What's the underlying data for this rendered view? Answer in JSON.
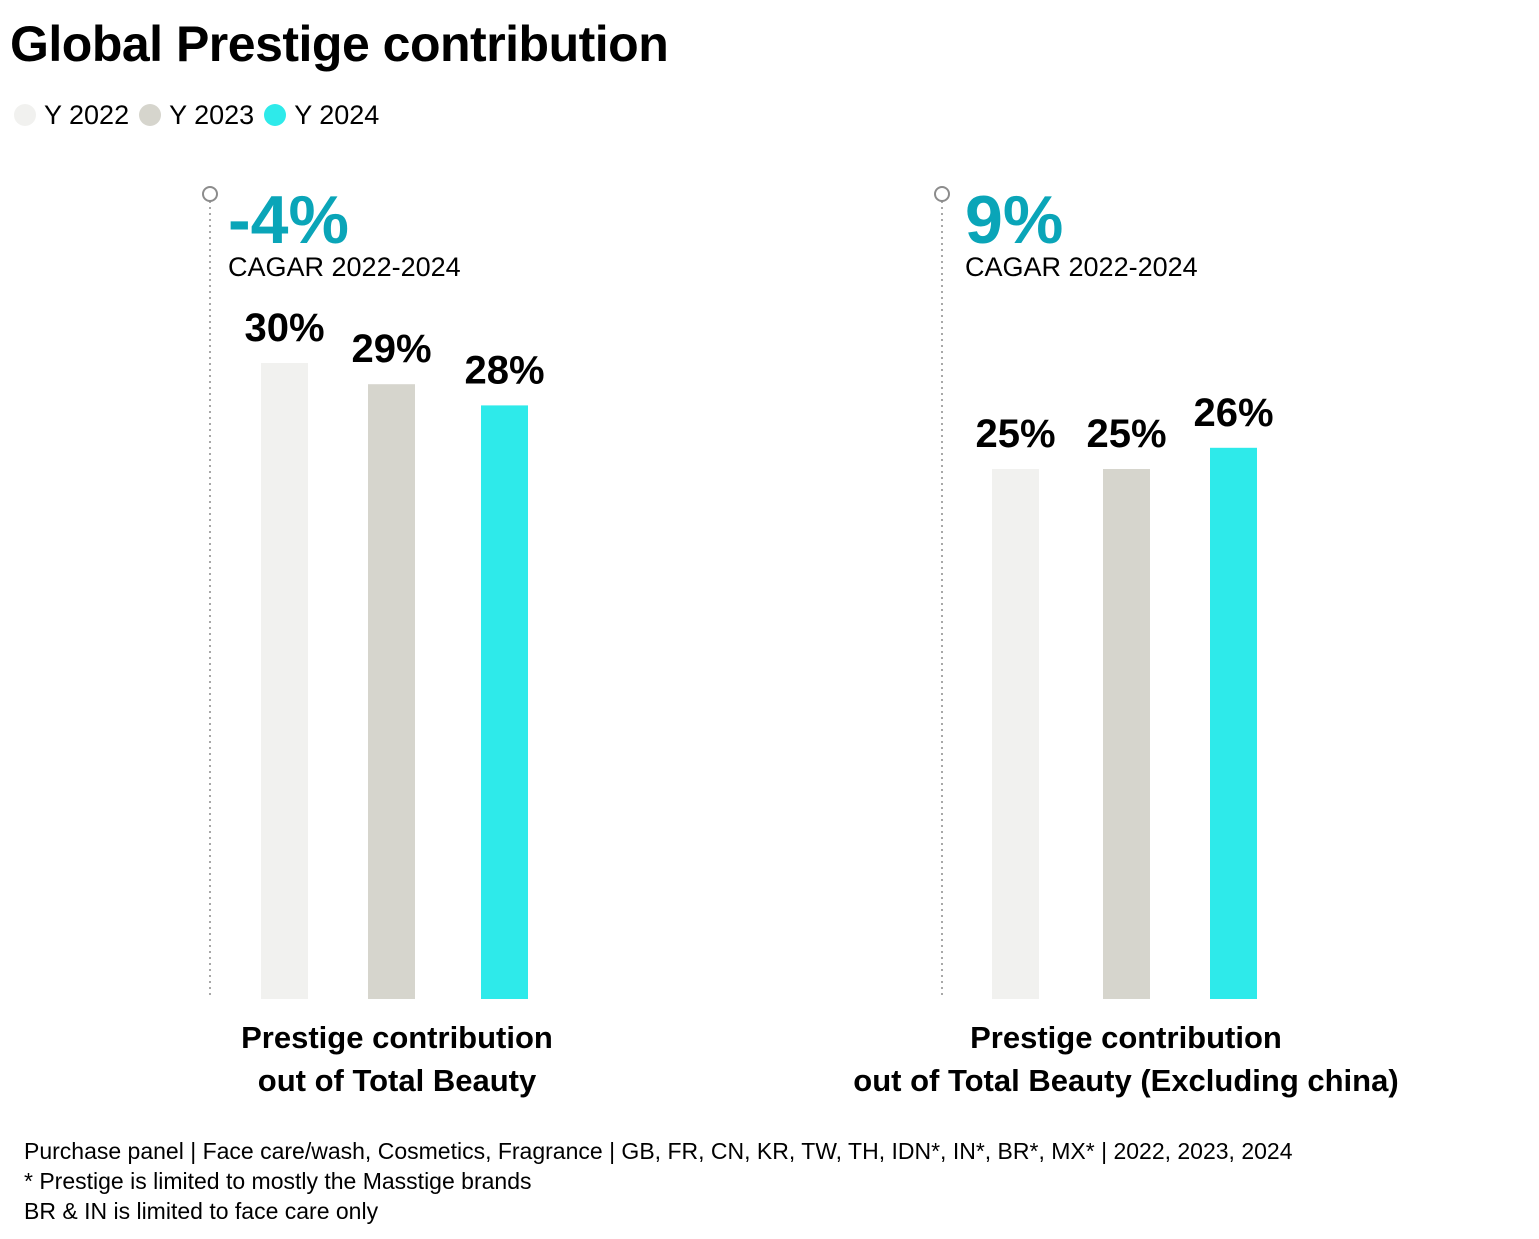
{
  "title": "Global Prestige contribution",
  "legend": [
    {
      "label": "Y 2022",
      "color": "#f1f1ef"
    },
    {
      "label": "Y 2023",
      "color": "#d6d5cd"
    },
    {
      "label": "Y 2024",
      "color": "#2eeaea"
    }
  ],
  "chart_data": [
    {
      "type": "bar",
      "categories": [
        "Y 2022",
        "Y 2023",
        "Y 2024"
      ],
      "values": [
        30,
        29,
        28
      ],
      "value_labels": [
        "30%",
        "29%",
        "28%"
      ],
      "colors": [
        "#f1f1ef",
        "#d6d5cd",
        "#2eeaea"
      ],
      "unit": "%",
      "xlabel": [
        "Prestige contribution",
        "out of Total Beauty"
      ],
      "cagr_value": "-4%",
      "cagr_label": "CAGAR 2022-2024"
    },
    {
      "type": "bar",
      "categories": [
        "Y 2022",
        "Y 2023",
        "Y 2024"
      ],
      "values": [
        25,
        25,
        26
      ],
      "value_labels": [
        "25%",
        "25%",
        "26%"
      ],
      "colors": [
        "#f1f1ef",
        "#d6d5cd",
        "#2eeaea"
      ],
      "unit": "%",
      "xlabel": [
        "Prestige contribution",
        "out of Total Beauty (Excluding china)"
      ],
      "cagr_value": "9%",
      "cagr_label": "CAGAR 2022-2024"
    }
  ],
  "accent_color": "#0aa5b8",
  "footnotes": [
    "Purchase panel | Face care/wash, Cosmetics, Fragrance | GB, FR, CN, KR, TW, TH, IDN*, IN*, BR*, MX* | 2022, 2023, 2024",
    "* Prestige is limited to mostly the Masstige brands",
    "BR & IN is limited to face care only"
  ]
}
